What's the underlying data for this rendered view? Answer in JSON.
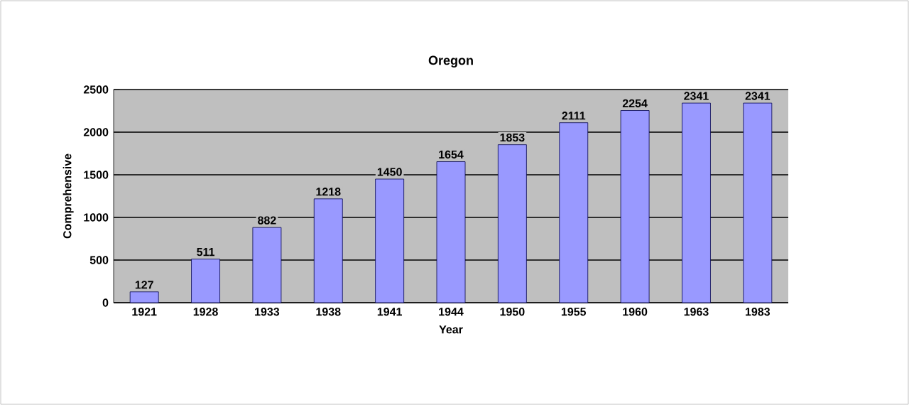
{
  "chart_data": {
    "type": "bar",
    "title": "Oregon",
    "xlabel": "Year",
    "ylabel": "Comprehensive",
    "categories": [
      "1921",
      "1928",
      "1933",
      "1938",
      "1941",
      "1944",
      "1950",
      "1955",
      "1960",
      "1963",
      "1983"
    ],
    "values": [
      127,
      511,
      882,
      1218,
      1450,
      1654,
      1853,
      2111,
      2254,
      2341,
      2341
    ],
    "color": "#9999ff",
    "ylim": [
      0,
      2500
    ],
    "yticks": [
      0,
      500,
      1000,
      1500,
      2000,
      2500
    ],
    "grid": "y",
    "data_labels": true
  }
}
